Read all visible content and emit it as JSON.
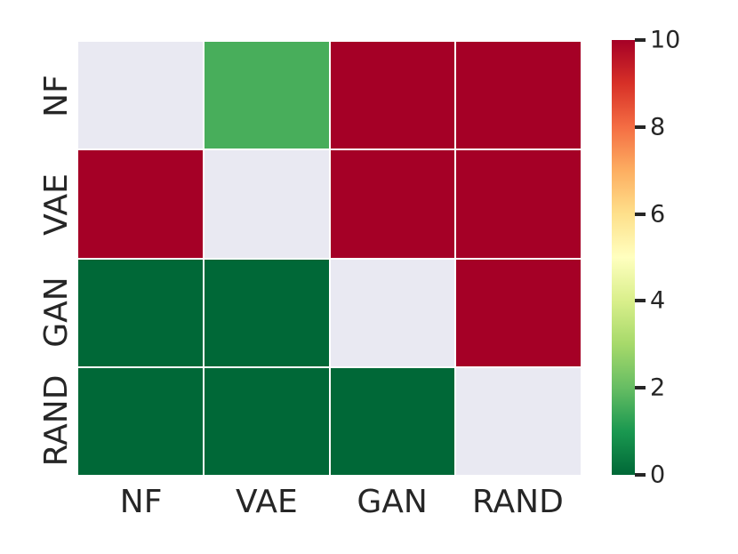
{
  "figure": {
    "background": "#ffffff",
    "text_color": "#262626"
  },
  "chart_data": {
    "type": "heatmap",
    "title": "",
    "x_categories": [
      "NF",
      "VAE",
      "GAN",
      "RAND"
    ],
    "y_categories": [
      "NF",
      "VAE",
      "GAN",
      "RAND"
    ],
    "matrix": [
      [
        null,
        1.6,
        10,
        10
      ],
      [
        10,
        null,
        10,
        10
      ],
      [
        0,
        0,
        null,
        10
      ],
      [
        0,
        0,
        0,
        null
      ]
    ],
    "vmin": 0,
    "vmax": 10,
    "colormap": "RdYlGn_r",
    "masked_cell_color": "#e9e9f2",
    "grid_line_color": "#ffffff",
    "key_colors": {
      "max_red": "#a50026",
      "min_green": "#006837",
      "mid_green_cell": "#4bae5c"
    },
    "colormap_anchors": [
      {
        "t": 0.0,
        "color": "#006837"
      },
      {
        "t": 0.1,
        "color": "#1a9850"
      },
      {
        "t": 0.2,
        "color": "#66bd63"
      },
      {
        "t": 0.3,
        "color": "#a6d96a"
      },
      {
        "t": 0.4,
        "color": "#d9ef8b"
      },
      {
        "t": 0.5,
        "color": "#ffffbf"
      },
      {
        "t": 0.6,
        "color": "#fee08b"
      },
      {
        "t": 0.7,
        "color": "#fdae61"
      },
      {
        "t": 0.8,
        "color": "#f46d43"
      },
      {
        "t": 0.9,
        "color": "#d73027"
      },
      {
        "t": 1.0,
        "color": "#a50026"
      }
    ],
    "colorbar_ticks": [
      "10",
      "8",
      "6",
      "4",
      "2",
      "0"
    ],
    "colorbar_tick_values": [
      10,
      8,
      6,
      4,
      2,
      0
    ],
    "legend_position": "right",
    "grid": false
  }
}
